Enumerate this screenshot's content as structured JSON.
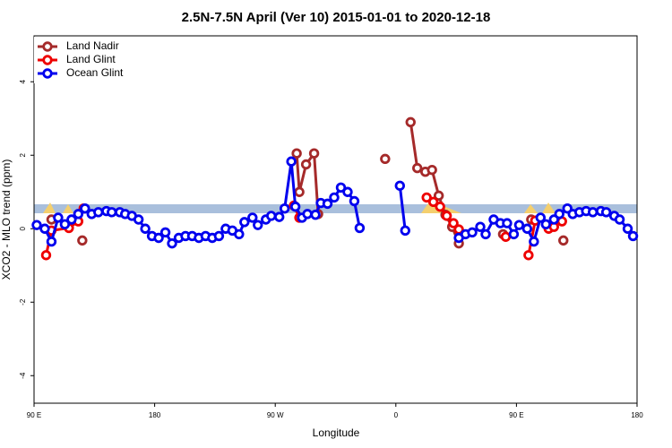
{
  "chart_data": {
    "type": "line",
    "title": "2.5N-7.5N April (Ver 10)   2015-01-01 to 2020-12-18",
    "x_label": "Longitude",
    "y_label": "XCO2 - MLO trend (ppm)",
    "xlim": [
      90,
      540
    ],
    "ylim": [
      -4.75,
      5.25
    ],
    "xticks": [
      {
        "value": 90,
        "label": "90 E"
      },
      180,
      {
        "value": 270,
        "label": "90 W"
      },
      {
        "value": 360,
        "label": "0"
      },
      {
        "value": 450,
        "label": "90 E"
      },
      {
        "value": 540,
        "label": "180"
      }
    ],
    "yticks": [
      -4,
      -2,
      0,
      2,
      4
    ],
    "legend": "top-left",
    "series": [
      {
        "name": "Land Nadir",
        "color": "#a52a2a",
        "x": [
          103,
          110,
          126,
          200,
          286,
          288,
          293,
          299,
          302,
          320,
          352,
          360,
          371,
          376,
          382,
          387,
          392,
          397,
          402,
          407,
          420,
          440,
          445,
          461,
          470,
          485
        ],
        "values": [
          0.25,
          null,
          -0.32,
          null,
          2.05,
          1.0,
          1.75,
          2.05,
          0.4,
          null,
          1.9,
          null,
          2.9,
          1.65,
          1.55,
          1.6,
          0.9,
          0.38,
          0.05,
          -0.4,
          null,
          -0.15,
          null,
          0.25,
          null,
          -0.32
        ]
      },
      {
        "name": "Land Glint",
        "color": "#ee0000",
        "x": [
          99,
          103,
          116,
          123,
          127,
          200,
          284,
          288,
          330,
          383,
          388,
          393,
          398,
          403,
          407,
          420,
          442,
          445,
          459,
          464,
          470,
          474,
          478,
          484
        ],
        "values": [
          -0.72,
          -0.05,
          0.02,
          0.2,
          0.55,
          null,
          0.63,
          0.3,
          null,
          0.85,
          0.73,
          0.6,
          0.35,
          0.15,
          -0.02,
          null,
          -0.22,
          null,
          -0.72,
          0.22,
          null,
          0,
          0.05,
          0.2
        ]
      },
      {
        "name": "Ocean Glint",
        "color": "#0000ee",
        "x": [
          92,
          98,
          103,
          108,
          113,
          118,
          123,
          128,
          133,
          138,
          144,
          148,
          154,
          158,
          163,
          168,
          173,
          178,
          183,
          188,
          193,
          198,
          203,
          208,
          213,
          218,
          223,
          228,
          233,
          238,
          243,
          247,
          253,
          257,
          263,
          267,
          273,
          277,
          282,
          285,
          290,
          294,
          300,
          304,
          309,
          314,
          319,
          324,
          329,
          333,
          355,
          363,
          367,
          385,
          407,
          412,
          417,
          423,
          427,
          433,
          438,
          443,
          448,
          452,
          458,
          463,
          468,
          472,
          478,
          482,
          488,
          492,
          497,
          502,
          507,
          513,
          517,
          523,
          527,
          533,
          537
        ],
        "values": [
          0.1,
          0,
          -0.35,
          0.3,
          0.12,
          0.25,
          0.4,
          0.55,
          0.4,
          0.45,
          0.48,
          0.45,
          0.45,
          0.4,
          0.35,
          0.25,
          0,
          -0.2,
          -0.25,
          -0.1,
          -0.4,
          -0.25,
          -0.2,
          -0.2,
          -0.25,
          -0.2,
          -0.25,
          -0.2,
          0,
          -0.05,
          -0.15,
          0.18,
          0.3,
          0.1,
          0.25,
          0.35,
          0.32,
          0.55,
          1.83,
          0.6,
          0.3,
          0.4,
          0.38,
          0.7,
          0.68,
          0.85,
          1.12,
          1.0,
          0.75,
          0.02,
          null,
          1.17,
          -0.05,
          null,
          -0.25,
          -0.15,
          -0.1,
          0.05,
          -0.15,
          0.25,
          0.15,
          0.15,
          -0.15,
          0.1,
          0,
          -0.35,
          0.3,
          0.12,
          0.25,
          0.4,
          0.55,
          0.4,
          0.45,
          0.48,
          0.45,
          0.48,
          0.45,
          0.35,
          0.25,
          0,
          -0.2
        ]
      }
    ]
  }
}
